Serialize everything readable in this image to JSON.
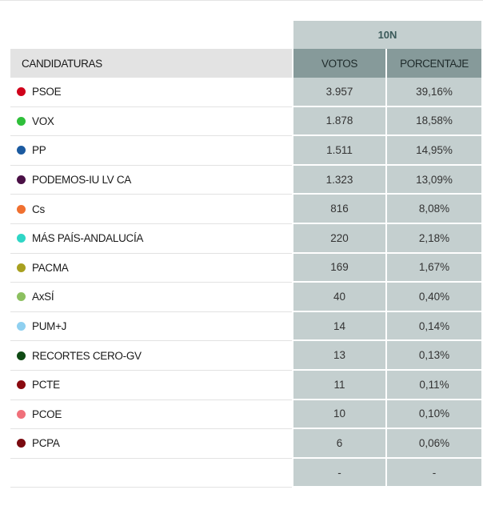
{
  "table": {
    "group_header": "10N",
    "headers": {
      "candidaturas": "CANDIDATURAS",
      "votos": "VOTOS",
      "porcentaje": "PORCENTAJE"
    },
    "rows": [
      {
        "name": "PSOE",
        "color": "#d0021b",
        "votos": "3.957",
        "porcentaje": "39,16%"
      },
      {
        "name": "VOX",
        "color": "#2fbf3a",
        "votos": "1.878",
        "porcentaje": "18,58%"
      },
      {
        "name": "PP",
        "color": "#1b5aa0",
        "votos": "1.511",
        "porcentaje": "14,95%"
      },
      {
        "name": "PODEMOS-IU LV CA",
        "color": "#4a1046",
        "votos": "1.323",
        "porcentaje": "13,09%"
      },
      {
        "name": "Cs",
        "color": "#f07030",
        "votos": "816",
        "porcentaje": "8,08%"
      },
      {
        "name": "MÁS PAÍS-ANDALUCÍA",
        "color": "#2fd6c6",
        "votos": "220",
        "porcentaje": "2,18%"
      },
      {
        "name": "PACMA",
        "color": "#a8a020",
        "votos": "169",
        "porcentaje": "1,67%"
      },
      {
        "name": "AxSÍ",
        "color": "#8cc060",
        "votos": "40",
        "porcentaje": "0,40%"
      },
      {
        "name": "PUM+J",
        "color": "#8fd0f0",
        "votos": "14",
        "porcentaje": "0,14%"
      },
      {
        "name": "RECORTES CERO-GV",
        "color": "#0f4a14",
        "votos": "13",
        "porcentaje": "0,13%"
      },
      {
        "name": "PCTE",
        "color": "#8a0a10",
        "votos": "11",
        "porcentaje": "0,11%"
      },
      {
        "name": "PCOE",
        "color": "#f0707a",
        "votos": "10",
        "porcentaje": "0,10%"
      },
      {
        "name": "PCPA",
        "color": "#7a0a10",
        "votos": "6",
        "porcentaje": "0,06%"
      },
      {
        "name": "",
        "color": "",
        "votos": "-",
        "porcentaje": "-"
      }
    ]
  }
}
